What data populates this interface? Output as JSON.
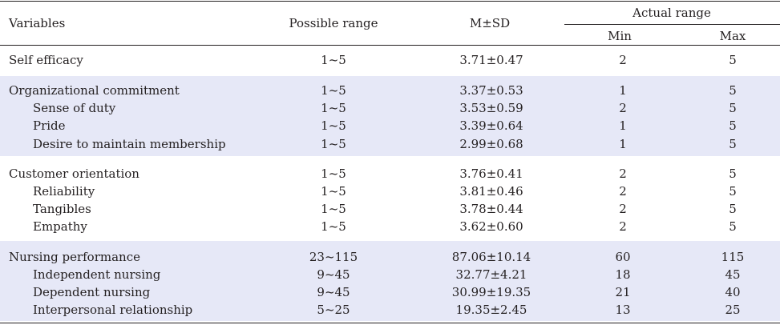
{
  "header": {
    "variables": "Variables",
    "possible_range": "Possible range",
    "msd": "M±SD",
    "actual_range": "Actual range",
    "min": "Min",
    "max": "Max"
  },
  "rows": [
    {
      "label": "Self efficacy",
      "range": "1~5",
      "msd": "3.71±0.47",
      "min": "2",
      "max": "5"
    },
    {
      "label": "Organizational commitment",
      "range": "1~5",
      "msd": "3.37±0.53",
      "min": "1",
      "max": "5"
    },
    {
      "label": "Sense of duty",
      "range": "1~5",
      "msd": "3.53±0.59",
      "min": "2",
      "max": "5"
    },
    {
      "label": "Pride",
      "range": "1~5",
      "msd": "3.39±0.64",
      "min": "1",
      "max": "5"
    },
    {
      "label": "Desire to maintain membership",
      "range": "1~5",
      "msd": "2.99±0.68",
      "min": "1",
      "max": "5"
    },
    {
      "label": "Customer orientation",
      "range": "1~5",
      "msd": "3.76±0.41",
      "min": "2",
      "max": "5"
    },
    {
      "label": "Reliability",
      "range": "1~5",
      "msd": "3.81±0.46",
      "min": "2",
      "max": "5"
    },
    {
      "label": "Tangibles",
      "range": "1~5",
      "msd": "3.78±0.44",
      "min": "2",
      "max": "5"
    },
    {
      "label": "Empathy",
      "range": "1~5",
      "msd": "3.62±0.60",
      "min": "2",
      "max": "5"
    },
    {
      "label": "Nursing performance",
      "range": "23~115",
      "msd": "87.06±10.14",
      "min": "60",
      "max": "115"
    },
    {
      "label": "Independent nursing",
      "range": "9~45",
      "msd": "32.77±4.21",
      "min": "18",
      "max": "45"
    },
    {
      "label": "Dependent nursing",
      "range": "9~45",
      "msd": "30.99±19.35",
      "min": "21",
      "max": "40"
    },
    {
      "label": "Interpersonal relationship",
      "range": "5~25",
      "msd": "19.35±2.45",
      "min": "13",
      "max": "25"
    }
  ]
}
